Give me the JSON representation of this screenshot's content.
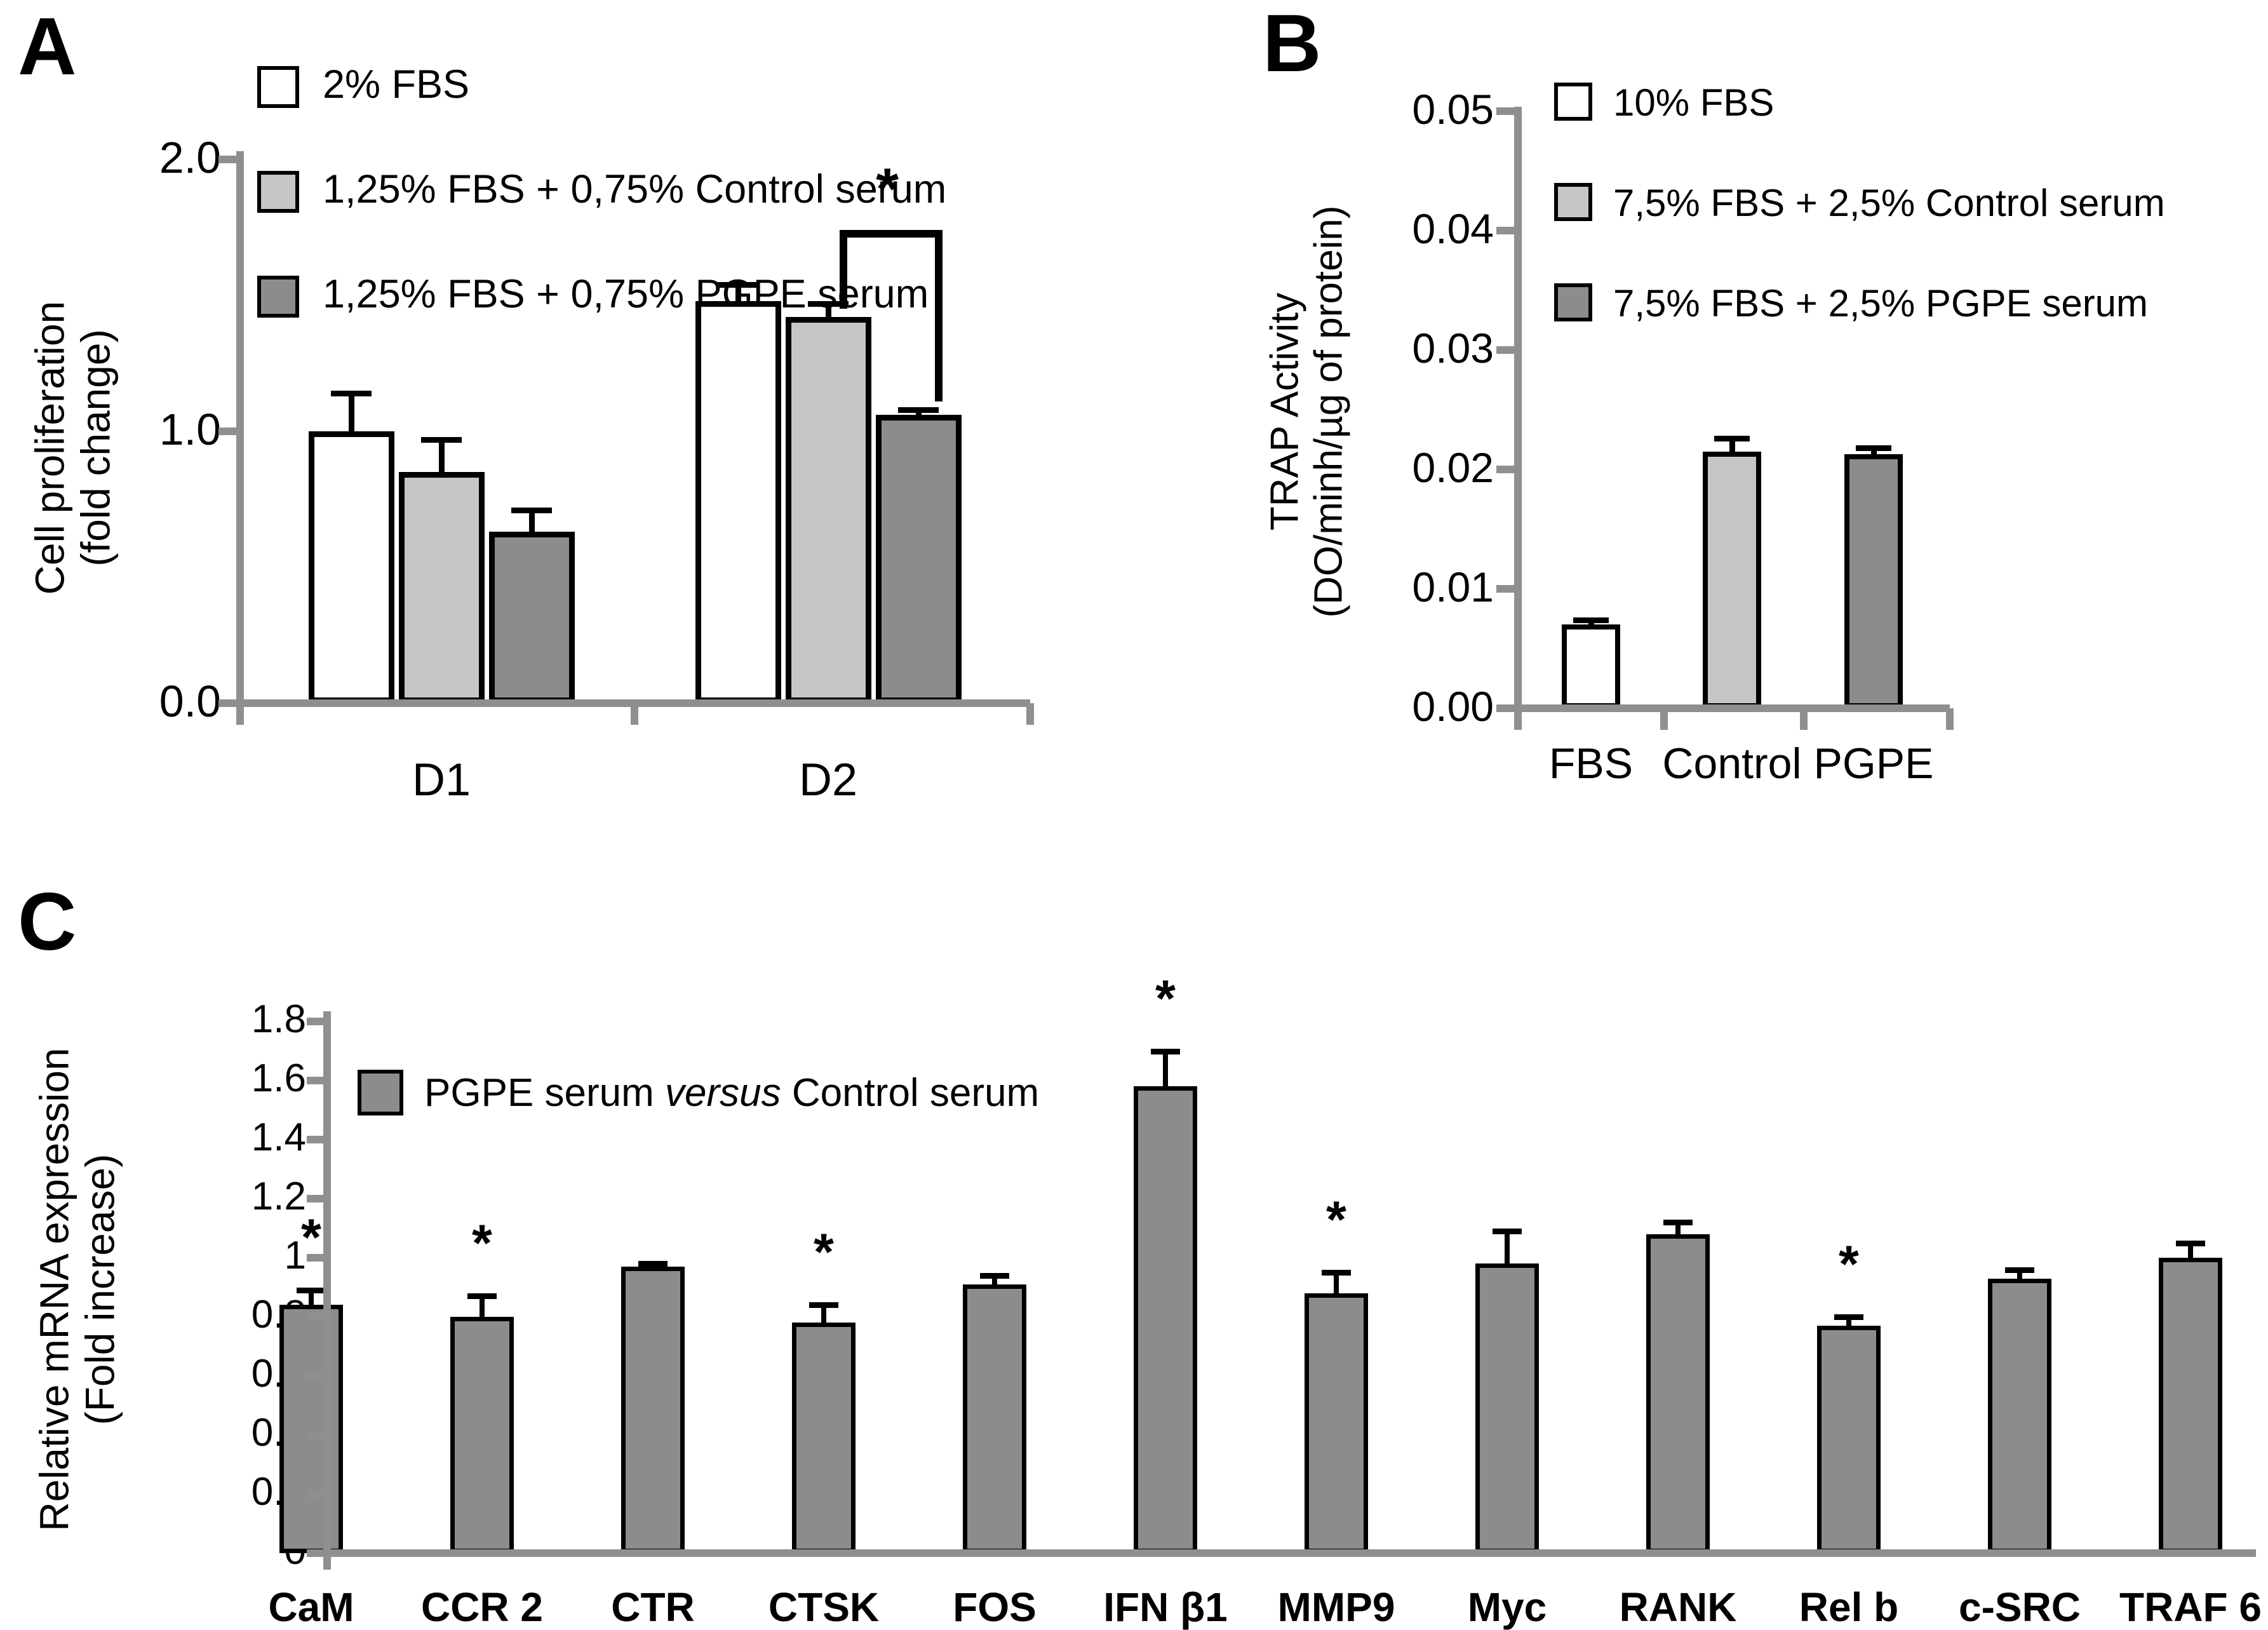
{
  "colors": {
    "white_bar": "#ffffff",
    "light_gray_bar": "#c6c6c6",
    "dark_gray_bar": "#8c8c8c",
    "axis_gray": "#8f8f8f",
    "text": "#000000"
  },
  "chart_data": [
    {
      "panel_label": "A",
      "type": "bar",
      "ylabel_lines": [
        "Cell proliferation",
        "(fold change)"
      ],
      "ylim": [
        0,
        2.0
      ],
      "grid": false,
      "legend_position": "upper-left-inside",
      "yticks": [
        {
          "value": 0.0,
          "label": "0.0"
        },
        {
          "value": 1.0,
          "label": "1.0"
        },
        {
          "value": 2.0,
          "label": "2.0"
        }
      ],
      "categories": [
        "D1",
        "D2"
      ],
      "legend": [
        {
          "label": "2% FBS",
          "color_key": "white_bar"
        },
        {
          "label": "1,25% FBS + 0,75% Control serum",
          "color_key": "light_gray_bar"
        },
        {
          "label": "1,25% FBS + 0,75% PGPE serum",
          "color_key": "dark_gray_bar"
        }
      ],
      "series": [
        {
          "name": "2% FBS",
          "color_key": "white_bar",
          "values": [
            1.0,
            1.48
          ],
          "errors": [
            0.14,
            0.06
          ]
        },
        {
          "name": "1,25% FBS + 0,75% Control serum",
          "color_key": "light_gray_bar",
          "values": [
            0.85,
            1.42
          ],
          "errors": [
            0.12,
            0.05
          ]
        },
        {
          "name": "1,25% FBS + 0,75% PGPE serum",
          "color_key": "dark_gray_bar",
          "values": [
            0.63,
            1.06
          ],
          "errors": [
            0.08,
            0.02
          ]
        }
      ],
      "significance": {
        "symbol": "*",
        "between": [
          "1,25% FBS + 0,75% Control serum",
          "1,25% FBS + 0,75% PGPE serum"
        ],
        "at_category": "D2"
      }
    },
    {
      "panel_label": "B",
      "type": "bar",
      "ylabel_lines": [
        "TRAP Activity",
        "(DO/minh/µg of protein)"
      ],
      "ylim": [
        0,
        0.05
      ],
      "grid": false,
      "legend_position": "upper-left-inside",
      "yticks": [
        {
          "value": 0.0,
          "label": "0.00"
        },
        {
          "value": 0.01,
          "label": "0.01"
        },
        {
          "value": 0.02,
          "label": "0.02"
        },
        {
          "value": 0.03,
          "label": "0.03"
        },
        {
          "value": 0.04,
          "label": "0.04"
        },
        {
          "value": 0.05,
          "label": "0.05"
        }
      ],
      "categories": [
        "FBS",
        "Control",
        "PGPE"
      ],
      "legend": [
        {
          "label": "10% FBS",
          "color_key": "white_bar"
        },
        {
          "label": "7,5% FBS + 2,5% Control serum",
          "color_key": "light_gray_bar"
        },
        {
          "label": "7,5% FBS + 2,5% PGPE serum",
          "color_key": "dark_gray_bar"
        }
      ],
      "bars": [
        {
          "category": "FBS",
          "value": 0.007,
          "error": 0.0004,
          "color_key": "white_bar",
          "sig": ""
        },
        {
          "category": "Control",
          "value": 0.0215,
          "error": 0.0011,
          "color_key": "light_gray_bar",
          "sig": ""
        },
        {
          "category": "PGPE",
          "value": 0.0213,
          "error": 0.0005,
          "color_key": "dark_gray_bar",
          "sig": ""
        }
      ]
    },
    {
      "panel_label": "C",
      "type": "bar",
      "ylabel_lines": [
        "Relative mRNA expression",
        "(Fold increase)"
      ],
      "ylim": [
        0,
        1.8
      ],
      "grid": false,
      "legend_position": "upper-left-inside",
      "yticks": [
        {
          "value": 0.0,
          "label": "0"
        },
        {
          "value": 0.2,
          "label": "0.2"
        },
        {
          "value": 0.4,
          "label": "0.4"
        },
        {
          "value": 0.6,
          "label": "0.6"
        },
        {
          "value": 0.8,
          "label": "0.8"
        },
        {
          "value": 1.0,
          "label": "1"
        },
        {
          "value": 1.2,
          "label": "1.2"
        },
        {
          "value": 1.4,
          "label": "1.4"
        },
        {
          "value": 1.6,
          "label": "1.6"
        },
        {
          "value": 1.8,
          "label": "1.8"
        }
      ],
      "categories": [
        "CaM",
        "CCR 2",
        "CTR",
        "CTSK",
        "FOS",
        "IFN β1",
        "MMP9",
        "Myc",
        "RANK",
        "Rel b",
        "c-SRC",
        "TRAF 6"
      ],
      "legend": [
        {
          "label": "PGPE serum versus Control serum",
          "color_key": "dark_gray_bar"
        }
      ],
      "legend_text": {
        "prefix": "PGPE serum",
        "italic": " versus ",
        "suffix": "Control serum"
      },
      "bars": [
        {
          "category": "CaM",
          "value": 0.84,
          "error": 0.05,
          "color_key": "dark_gray_bar",
          "sig": "*"
        },
        {
          "category": "CCR 2",
          "value": 0.8,
          "error": 0.07,
          "color_key": "dark_gray_bar",
          "sig": "*"
        },
        {
          "category": "CTR",
          "value": 0.97,
          "error": 0.01,
          "color_key": "dark_gray_bar",
          "sig": ""
        },
        {
          "category": "CTSK",
          "value": 0.78,
          "error": 0.06,
          "color_key": "dark_gray_bar",
          "sig": "*"
        },
        {
          "category": "FOS",
          "value": 0.91,
          "error": 0.03,
          "color_key": "dark_gray_bar",
          "sig": ""
        },
        {
          "category": "IFN β1",
          "value": 1.58,
          "error": 0.12,
          "color_key": "dark_gray_bar",
          "sig": "*"
        },
        {
          "category": "MMP9",
          "value": 0.88,
          "error": 0.07,
          "color_key": "dark_gray_bar",
          "sig": "*"
        },
        {
          "category": "Myc",
          "value": 0.98,
          "error": 0.11,
          "color_key": "dark_gray_bar",
          "sig": ""
        },
        {
          "category": "RANK",
          "value": 1.08,
          "error": 0.04,
          "color_key": "dark_gray_bar",
          "sig": ""
        },
        {
          "category": "Rel b",
          "value": 0.77,
          "error": 0.03,
          "color_key": "dark_gray_bar",
          "sig": "*"
        },
        {
          "category": "c-SRC",
          "value": 0.93,
          "error": 0.03,
          "color_key": "dark_gray_bar",
          "sig": ""
        },
        {
          "category": "TRAF 6",
          "value": 1.0,
          "error": 0.05,
          "color_key": "dark_gray_bar",
          "sig": ""
        }
      ]
    }
  ]
}
